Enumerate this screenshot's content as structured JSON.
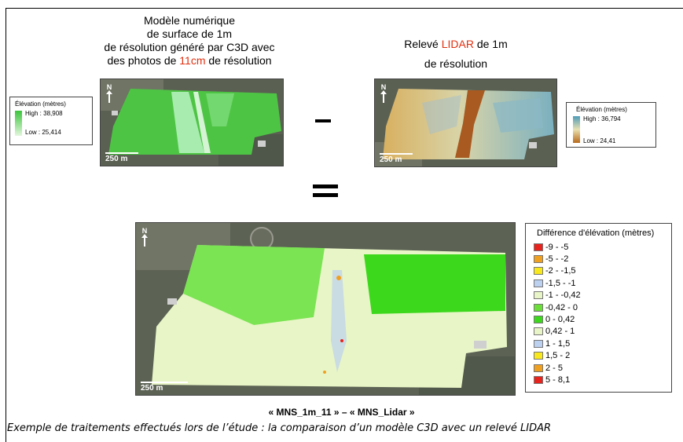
{
  "left_panel": {
    "title_line1": "Modèle numérique",
    "title_line2": "de surface de 1m",
    "title_line3": "de résolution généré par C3D avec",
    "title_line4_pre": "des photos de ",
    "title_line4_hl": "11cm",
    "title_line4_post": " de résolution",
    "scale": "250 m",
    "north": "N",
    "legend": {
      "title": "Élévation (mètres)",
      "high": "High : 38,908",
      "low": "Low : 25,414"
    }
  },
  "right_panel": {
    "title_pre": "Relevé ",
    "title_hl": "LIDAR",
    "title_post": " de 1m",
    "title_line2": "de résolution",
    "scale": "250 m",
    "north": "N",
    "legend": {
      "title": "Élévation (mètres)",
      "high": "High : 36,794",
      "low": "Low : 24,41"
    }
  },
  "bottom_panel": {
    "scale": "250 m",
    "north": "N",
    "legend_title": "Différence d'élévation (mètres)",
    "classes": [
      {
        "label": "-9 - -5",
        "color": "#e8221c"
      },
      {
        "label": "-5 - -2",
        "color": "#f0a020"
      },
      {
        "label": "-2 - -1,5",
        "color": "#f8e81c"
      },
      {
        "label": "-1,5 - -1",
        "color": "#bcd0f0"
      },
      {
        "label": "-1 - -0,42",
        "color": "#e8f5c6"
      },
      {
        "label": "-0,42 - 0",
        "color": "#6cde3a"
      },
      {
        "label": "0 - 0,42",
        "color": "#3cd81c"
      },
      {
        "label": "0,42 - 1",
        "color": "#e8f5c6"
      },
      {
        "label": "1 - 1,5",
        "color": "#bcd0f0"
      },
      {
        "label": "1,5 - 2",
        "color": "#f8e81c"
      },
      {
        "label": "2 - 5",
        "color": "#f0a020"
      },
      {
        "label": "5 - 8,1",
        "color": "#e8221c"
      }
    ]
  },
  "formula": "« MNS_1m_11 » – « MNS_Lidar »",
  "caption": "Exemple de traitements effectués lors de l’étude : la comparaison d’un modèle C3D avec un relevé LIDAR"
}
